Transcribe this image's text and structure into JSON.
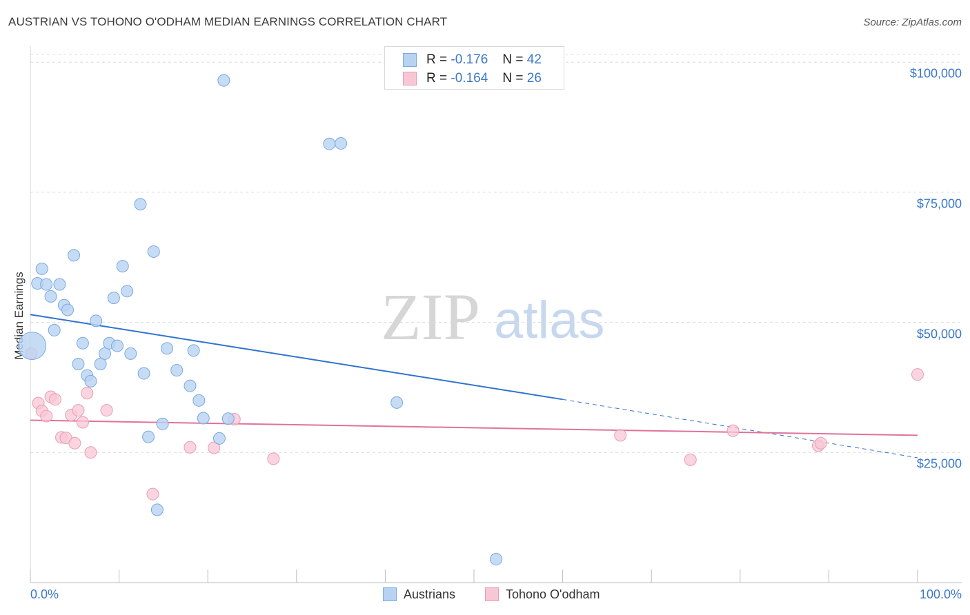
{
  "colors": {
    "blue": "#3a78c9",
    "blue_fill": "#b8d3f2",
    "blue_line": "#2f73d0",
    "pink_fill": "#f8c7d6",
    "pink_line": "#e0729a",
    "grid": "#dcdcdc"
  },
  "chart_data": {
    "type": "scatter",
    "title": "AUSTRIAN VS TOHONO O'ODHAM MEDIAN EARNINGS CORRELATION CHART",
    "source": "Source: ZipAtlas.com",
    "watermark": {
      "zip": "ZIP",
      "atlas": "atlas"
    },
    "xlabel": "",
    "ylabel": "Median Earnings",
    "xlim": [
      0,
      100
    ],
    "ylim": [
      0,
      104000
    ],
    "x_tick_labels": [
      "0.0%",
      "100.0%"
    ],
    "y_ticks": [
      {
        "value": 25000,
        "label": "$25,000"
      },
      {
        "value": 50000,
        "label": "$50,000"
      },
      {
        "value": 75000,
        "label": "$75,000"
      },
      {
        "value": 100000,
        "label": "$100,000"
      }
    ],
    "legend_top": [
      {
        "r_label": "R =",
        "r_value": "-0.176",
        "n_label": "N =",
        "n_value": "42"
      },
      {
        "r_label": "R =",
        "r_value": "-0.164",
        "n_label": "N =",
        "n_value": "26"
      }
    ],
    "series": [
      {
        "name": "Austrians",
        "trend": {
          "x0": 0,
          "y0": 51500,
          "x1": 60,
          "y1": 35200,
          "dash_x1": 100,
          "dash_y1": 24000
        },
        "points": [
          {
            "x": 0.2,
            "y": 45500,
            "size": "large"
          },
          {
            "x": 0.8,
            "y": 57500
          },
          {
            "x": 1.3,
            "y": 60300
          },
          {
            "x": 1.8,
            "y": 57300
          },
          {
            "x": 2.3,
            "y": 55000
          },
          {
            "x": 2.7,
            "y": 48500
          },
          {
            "x": 3.3,
            "y": 57300
          },
          {
            "x": 3.8,
            "y": 53300
          },
          {
            "x": 4.2,
            "y": 52400
          },
          {
            "x": 4.9,
            "y": 62900
          },
          {
            "x": 5.4,
            "y": 42000
          },
          {
            "x": 5.9,
            "y": 46000
          },
          {
            "x": 6.4,
            "y": 39800
          },
          {
            "x": 6.8,
            "y": 38700
          },
          {
            "x": 7.4,
            "y": 50300
          },
          {
            "x": 7.9,
            "y": 42000
          },
          {
            "x": 8.4,
            "y": 44000
          },
          {
            "x": 8.9,
            "y": 46000
          },
          {
            "x": 9.4,
            "y": 54700
          },
          {
            "x": 9.8,
            "y": 45500
          },
          {
            "x": 10.4,
            "y": 60800
          },
          {
            "x": 10.9,
            "y": 56000
          },
          {
            "x": 11.3,
            "y": 44000
          },
          {
            "x": 12.4,
            "y": 72700
          },
          {
            "x": 12.8,
            "y": 40200
          },
          {
            "x": 13.3,
            "y": 28000
          },
          {
            "x": 13.9,
            "y": 63600
          },
          {
            "x": 14.3,
            "y": 14000
          },
          {
            "x": 14.9,
            "y": 30500
          },
          {
            "x": 15.4,
            "y": 45000
          },
          {
            "x": 16.5,
            "y": 40800
          },
          {
            "x": 18.0,
            "y": 37800
          },
          {
            "x": 18.4,
            "y": 44600
          },
          {
            "x": 19.0,
            "y": 35000
          },
          {
            "x": 19.5,
            "y": 31600
          },
          {
            "x": 21.3,
            "y": 27700
          },
          {
            "x": 21.8,
            "y": 96500
          },
          {
            "x": 22.3,
            "y": 31500
          },
          {
            "x": 33.7,
            "y": 84300
          },
          {
            "x": 35.0,
            "y": 84400
          },
          {
            "x": 41.3,
            "y": 34600
          },
          {
            "x": 52.5,
            "y": 4500
          }
        ]
      },
      {
        "name": "Tohono O'odham",
        "trend": {
          "x0": 0,
          "y0": 31200,
          "x1": 100,
          "y1": 28300
        },
        "points": [
          {
            "x": 0.1,
            "y": 44000
          },
          {
            "x": 0.9,
            "y": 34500
          },
          {
            "x": 1.3,
            "y": 33000
          },
          {
            "x": 1.8,
            "y": 32000
          },
          {
            "x": 2.3,
            "y": 35700
          },
          {
            "x": 2.8,
            "y": 35200
          },
          {
            "x": 3.5,
            "y": 27900
          },
          {
            "x": 4.0,
            "y": 27800
          },
          {
            "x": 4.6,
            "y": 32200
          },
          {
            "x": 5.0,
            "y": 26800
          },
          {
            "x": 5.4,
            "y": 33100
          },
          {
            "x": 5.9,
            "y": 30800
          },
          {
            "x": 6.4,
            "y": 36400
          },
          {
            "x": 6.8,
            "y": 25000
          },
          {
            "x": 8.6,
            "y": 33100
          },
          {
            "x": 13.8,
            "y": 17000
          },
          {
            "x": 18.0,
            "y": 26000
          },
          {
            "x": 20.7,
            "y": 25900
          },
          {
            "x": 23.0,
            "y": 31400
          },
          {
            "x": 27.4,
            "y": 23800
          },
          {
            "x": 66.5,
            "y": 28300
          },
          {
            "x": 74.4,
            "y": 23600
          },
          {
            "x": 79.2,
            "y": 29200
          },
          {
            "x": 88.8,
            "y": 26300
          },
          {
            "x": 89.1,
            "y": 26800
          },
          {
            "x": 100,
            "y": 40000
          }
        ]
      }
    ]
  }
}
